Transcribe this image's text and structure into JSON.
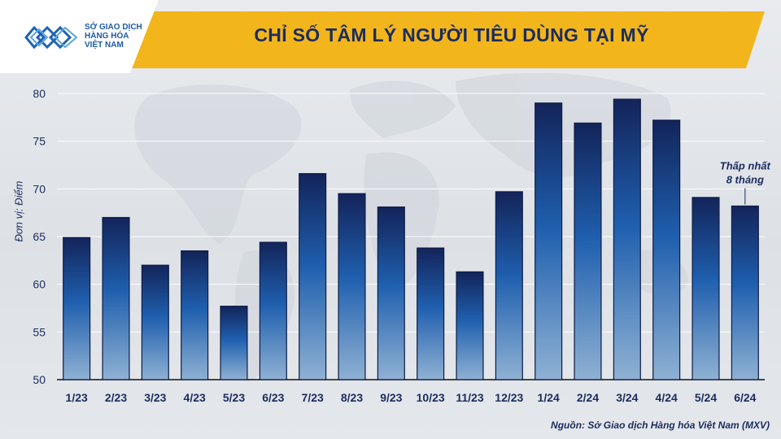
{
  "header": {
    "title": "CHỈ SỐ TÂM LÝ NGƯỜI TIÊU DÙNG TẠI MỸ",
    "logo_lines": [
      "SỞ GIAO DỊCH",
      "HÀNG HÓA",
      "VIỆT NAM"
    ]
  },
  "source": "Nguồn: Sở Giao dịch Hàng hóa Việt Nam (MXV)",
  "colors": {
    "header": "#f2b51c",
    "bar_top": "#13245a",
    "bar_mid": "#1f5fae",
    "bar_bottom": "#8fb1d3",
    "text": "#1b2c5e"
  },
  "chart_data": {
    "type": "bar",
    "title": "CHỈ SỐ TÂM LÝ NGƯỜI TIÊU DÙNG TẠI MỸ",
    "xlabel": "",
    "ylabel": "Đơn vị: Điểm",
    "categories": [
      "1/23",
      "2/23",
      "3/23",
      "4/23",
      "5/23",
      "6/23",
      "7/23",
      "8/23",
      "9/23",
      "10/23",
      "11/23",
      "12/23",
      "1/24",
      "2/24",
      "3/24",
      "4/24",
      "5/24",
      "6/24"
    ],
    "values": [
      64.9,
      67.0,
      62.0,
      63.5,
      57.7,
      64.4,
      71.6,
      69.5,
      68.1,
      63.8,
      61.3,
      69.7,
      79.0,
      76.9,
      79.4,
      77.2,
      69.1,
      68.2
    ],
    "ylim": [
      50,
      80
    ],
    "yticks": [
      50,
      55,
      60,
      65,
      70,
      75,
      80
    ],
    "grid": true,
    "annotations": [
      {
        "category": "6/24",
        "lines": [
          "Thấp nhất",
          "8 tháng"
        ]
      }
    ]
  }
}
